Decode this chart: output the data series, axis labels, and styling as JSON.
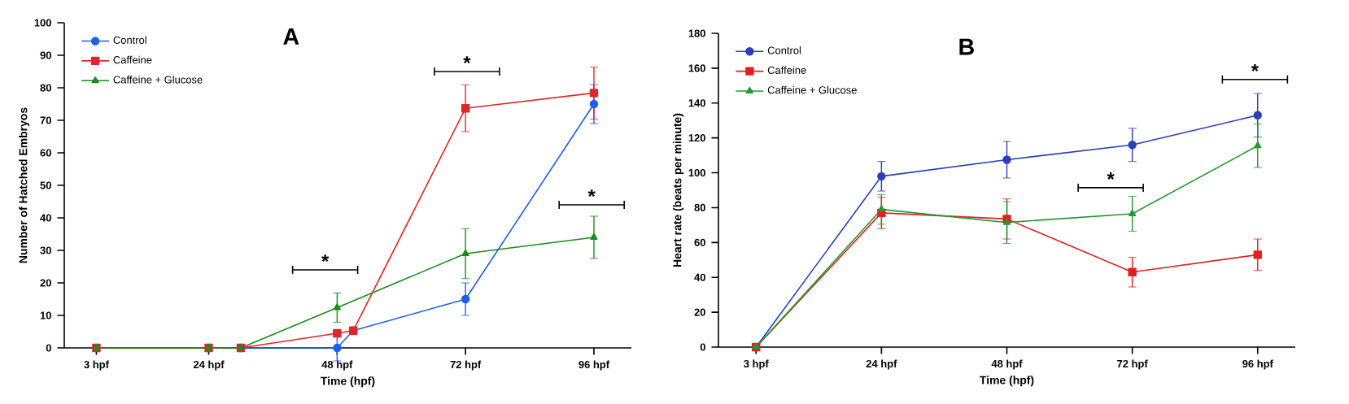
{
  "chart_data": [
    {
      "type": "line",
      "title": "A",
      "xlabel": "Time (hpf)",
      "ylabel": "Number of Hatched Embryos",
      "xlim": [
        -3,
        103
      ],
      "xticks": [
        {
          "value": 3,
          "label": "3 hpf"
        },
        {
          "value": 24,
          "label": "24 hpf"
        },
        {
          "value": 48,
          "label": "48 hpf"
        },
        {
          "value": 72,
          "label": "72 hpf"
        },
        {
          "value": 96,
          "label": "96 hpf"
        }
      ],
      "ylim": [
        0,
        100
      ],
      "yticks": [
        0,
        10,
        20,
        30,
        40,
        50,
        60,
        70,
        80,
        90,
        100
      ],
      "legend": "top left",
      "series": [
        {
          "name": "Control",
          "color": "#1f5cf0",
          "marker": "circle",
          "x": [
            30,
            48,
            51,
            72,
            96
          ],
          "values": [
            0,
            0,
            5.3,
            15,
            75
          ],
          "errors": [
            null,
            4,
            null,
            5,
            6
          ]
        },
        {
          "name": "Caffeine",
          "color": "#e0262a",
          "marker": "square",
          "x": [
            3,
            24,
            30,
            48,
            51,
            72,
            96
          ],
          "values": [
            0,
            0,
            0,
            4.5,
            5.3,
            73.7,
            78.4
          ],
          "errors": [
            null,
            null,
            null,
            null,
            null,
            7.2,
            8
          ]
        },
        {
          "name": "Caffeine + Glucose",
          "color": "#1a8c1a",
          "marker": "triangle",
          "x": [
            3,
            24,
            30,
            48,
            72,
            96
          ],
          "values": [
            0,
            0,
            0,
            12.4,
            29,
            34
          ],
          "errors": [
            0.8,
            0.8,
            null,
            4.5,
            7.7,
            6.5
          ]
        }
      ],
      "annotations": [
        "*",
        "*",
        "*"
      ]
    },
    {
      "type": "line",
      "title": "B",
      "xlabel": "Time (hpf)",
      "ylabel": "Heart rate (beats per minute)",
      "categories": [
        "3 hpf",
        "24 hpf",
        "48 hpf",
        "72 hpf",
        "96 hpf"
      ],
      "ylim": [
        0,
        180
      ],
      "yticks": [
        0,
        20,
        40,
        60,
        80,
        100,
        120,
        140,
        160,
        180
      ],
      "legend": "top left",
      "series": [
        {
          "name": "Control",
          "color": "#2a3fb8",
          "marker": "circle",
          "values": [
            0,
            98,
            107.5,
            116,
            133
          ],
          "errors": [
            null,
            8.5,
            10.5,
            9.5,
            12.5
          ]
        },
        {
          "name": "Caffeine",
          "color": "#e02020",
          "marker": "square",
          "values": [
            0,
            77,
            73.5,
            43,
            53
          ],
          "errors": [
            null,
            9,
            11.5,
            8.5,
            9
          ]
        },
        {
          "name": "Caffeine + Glucose",
          "color": "#1f9a2f",
          "marker": "triangle",
          "values": [
            0,
            79,
            71.5,
            76.5,
            115.5
          ],
          "errors": [
            null,
            8.5,
            12,
            10,
            12.5
          ]
        }
      ],
      "annotations": [
        "*",
        "*"
      ]
    }
  ]
}
